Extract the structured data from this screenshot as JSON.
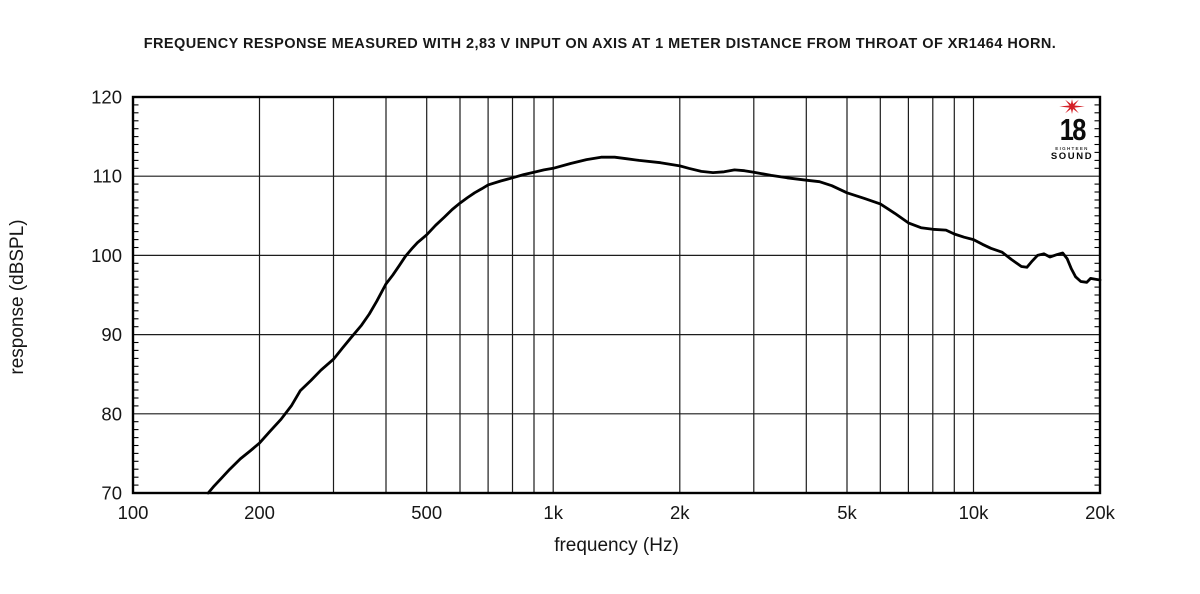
{
  "title": "FREQUENCY RESPONSE MEASURED WITH 2,83 V INPUT ON AXIS AT 1 METER DISTANCE FROM THROAT OF XR1464 HORN.",
  "logo": {
    "number": "18",
    "line1": "EIGHTEEN",
    "line2": "SOUND",
    "star_color": "#d41f26"
  },
  "chart_data": {
    "type": "line",
    "xlabel": "frequency (Hz)",
    "ylabel": "response (dBSPL)",
    "x_scale": "log",
    "xlim": [
      100,
      20000
    ],
    "ylim": [
      70,
      120
    ],
    "grid": true,
    "line_color": "#000000",
    "grid_color": "#1c1c1c",
    "x_ticks": [
      {
        "v": 100,
        "t": "100"
      },
      {
        "v": 200,
        "t": "200"
      },
      {
        "v": 500,
        "t": "500"
      },
      {
        "v": 1000,
        "t": "1k"
      },
      {
        "v": 2000,
        "t": "2k"
      },
      {
        "v": 5000,
        "t": "5k"
      },
      {
        "v": 10000,
        "t": "10k"
      },
      {
        "v": 20000,
        "t": "20k"
      }
    ],
    "y_ticks": [
      {
        "v": 70,
        "t": "70"
      },
      {
        "v": 80,
        "t": "80"
      },
      {
        "v": 90,
        "t": "90"
      },
      {
        "v": 100,
        "t": "100"
      },
      {
        "v": 110,
        "t": "110"
      },
      {
        "v": 120,
        "t": "120"
      }
    ],
    "x_gridlines": [
      200,
      300,
      400,
      500,
      600,
      700,
      800,
      900,
      1000,
      2000,
      3000,
      4000,
      5000,
      6000,
      7000,
      8000,
      9000,
      10000
    ],
    "y_gridlines": [
      80,
      90,
      100,
      110
    ],
    "y_minor_tick_step": 1,
    "series": [
      {
        "name": "response",
        "points": [
          [
            151,
            70
          ],
          [
            156,
            70.9
          ],
          [
            162,
            71.8
          ],
          [
            170,
            73.0
          ],
          [
            180,
            74.3
          ],
          [
            190,
            75.3
          ],
          [
            200,
            76.3
          ],
          [
            212,
            77.8
          ],
          [
            225,
            79.3
          ],
          [
            238,
            81.0
          ],
          [
            250,
            82.9
          ],
          [
            265,
            84.2
          ],
          [
            280,
            85.5
          ],
          [
            300,
            86.9
          ],
          [
            315,
            88.3
          ],
          [
            330,
            89.6
          ],
          [
            350,
            91.2
          ],
          [
            365,
            92.6
          ],
          [
            380,
            94.2
          ],
          [
            400,
            96.4
          ],
          [
            415,
            97.5
          ],
          [
            430,
            98.7
          ],
          [
            445,
            99.9
          ],
          [
            460,
            100.8
          ],
          [
            475,
            101.6
          ],
          [
            500,
            102.6
          ],
          [
            525,
            103.8
          ],
          [
            550,
            104.8
          ],
          [
            575,
            105.8
          ],
          [
            600,
            106.6
          ],
          [
            625,
            107.3
          ],
          [
            650,
            107.9
          ],
          [
            675,
            108.4
          ],
          [
            700,
            108.9
          ],
          [
            750,
            109.4
          ],
          [
            800,
            109.8
          ],
          [
            850,
            110.2
          ],
          [
            900,
            110.5
          ],
          [
            950,
            110.8
          ],
          [
            1000,
            111.0
          ],
          [
            1100,
            111.6
          ],
          [
            1200,
            112.1
          ],
          [
            1300,
            112.4
          ],
          [
            1400,
            112.4
          ],
          [
            1500,
            112.2
          ],
          [
            1600,
            112.0
          ],
          [
            1800,
            111.7
          ],
          [
            2000,
            111.3
          ],
          [
            2100,
            111.0
          ],
          [
            2250,
            110.6
          ],
          [
            2400,
            110.45
          ],
          [
            2550,
            110.55
          ],
          [
            2700,
            110.8
          ],
          [
            2850,
            110.7
          ],
          [
            3000,
            110.5
          ],
          [
            3300,
            110.1
          ],
          [
            3600,
            109.8
          ],
          [
            4000,
            109.5
          ],
          [
            4300,
            109.3
          ],
          [
            4600,
            108.8
          ],
          [
            5000,
            107.9
          ],
          [
            5500,
            107.2
          ],
          [
            6000,
            106.5
          ],
          [
            6500,
            105.3
          ],
          [
            7000,
            104.1
          ],
          [
            7500,
            103.5
          ],
          [
            8000,
            103.3
          ],
          [
            8600,
            103.2
          ],
          [
            9000,
            102.7
          ],
          [
            9500,
            102.3
          ],
          [
            10000,
            102.0
          ],
          [
            10500,
            101.4
          ],
          [
            11000,
            100.9
          ],
          [
            11700,
            100.4
          ],
          [
            12300,
            99.5
          ],
          [
            13000,
            98.6
          ],
          [
            13400,
            98.5
          ],
          [
            13800,
            99.3
          ],
          [
            14200,
            100.0
          ],
          [
            14700,
            100.2
          ],
          [
            15200,
            99.8
          ],
          [
            15800,
            100.1
          ],
          [
            16300,
            100.3
          ],
          [
            16700,
            99.6
          ],
          [
            17100,
            98.3
          ],
          [
            17500,
            97.3
          ],
          [
            18000,
            96.7
          ],
          [
            18600,
            96.6
          ],
          [
            19000,
            97.1
          ],
          [
            19500,
            97.0
          ],
          [
            20000,
            96.9
          ]
        ]
      }
    ]
  }
}
